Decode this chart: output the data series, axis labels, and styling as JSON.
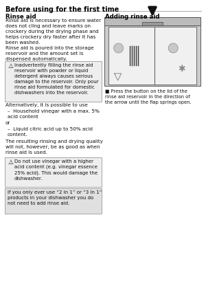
{
  "page_header": "Before using for the first time",
  "section_left": "Rinse aid",
  "section_right": "Adding rinse aid",
  "para1": "Rinse aid is necessary to ensure water\ndoes not cling and leave marks on\ncrockery during the drying phase and\nhelps crockery dry faster after it has\nbeen washed.",
  "para2": "Rinse aid is poured into the storage\nreservoir and the amount set is\ndispensed automatically.",
  "warning1_text": "Inadvertently filling the rinse aid\nreservoir with powder or liquid\ndetergent always causes serious\ndamage to the reservoir. Only pour\nrinse aid formulated for domestic\ndishwashers into the reservoir.",
  "alt_text": "Alternatively, it is possible to use",
  "bullet1": "Household vinegar with a max. 5%\nacid content",
  "or_text": "or",
  "bullet2": "Liquid citric acid up to 50% acid\ncontent.",
  "result_text": "The resulting rinsing and drying quality\nwill not, however, be as good as when\nrinse aid is used.",
  "warning2_text": "Do not use vinegar with a higher\nacid content (e.g. vinegar essence\n25% acid). This would damage the\ndishwasher.",
  "info_text": "If you only ever use “2 in 1” or “3 in 1”\nproducts in your dishwasher you do\nnot need to add rinse aid.",
  "press_caption": "Press the button on the lid of the\nrinse aid reservoir in the direction of\nthe arrow until the flap springs open.",
  "bg_color": "#ffffff",
  "box_bg": "#eeeeee",
  "header_color": "#000000",
  "text_color": "#111111"
}
